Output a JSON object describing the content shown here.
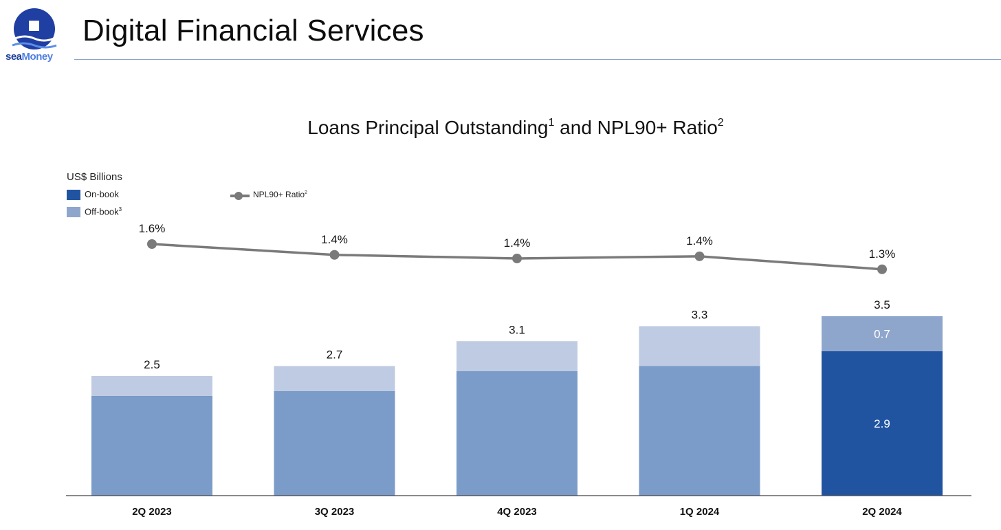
{
  "header": {
    "logo_sea": "sea",
    "logo_money": "Money",
    "title": "Digital Financial Services"
  },
  "chart_title": {
    "main_a": "Loans Principal Outstanding",
    "sup_a": "1",
    "main_b": " and NPL90+ Ratio",
    "sup_b": "2"
  },
  "unit_label": "US$ Billions",
  "legend": {
    "on_book": "On-book",
    "off_book": "Off-book",
    "off_book_sup": "3",
    "ratio": "NPL90+ Ratio",
    "ratio_sup": "2"
  },
  "colors": {
    "on_book_highlight": "#2054a1",
    "on_book": "#7b9bc8",
    "off_book_highlight": "#8fa6cc",
    "off_book": "#bfcbe2",
    "line": "#7a7a7a",
    "axis": "#444444"
  },
  "chart_data": {
    "type": "bar",
    "stacked": true,
    "title": "Loans Principal Outstanding and NPL90+ Ratio",
    "ylabel": "US$ Billions",
    "categories": [
      "2Q 2023",
      "3Q 2023",
      "4Q 2023",
      "1Q 2024",
      "2Q 2024"
    ],
    "series": [
      {
        "name": "On-book",
        "values": [
          2.0,
          2.1,
          2.5,
          2.6,
          2.9
        ]
      },
      {
        "name": "Off-book",
        "values": [
          0.4,
          0.5,
          0.6,
          0.8,
          0.7
        ]
      }
    ],
    "totals": [
      2.5,
      2.7,
      3.1,
      3.3,
      3.5
    ],
    "total_labels": [
      "2.5",
      "2.7",
      "3.1",
      "3.3",
      "3.5"
    ],
    "highlight_labels": {
      "on_book": "2.9",
      "off_book": "0.7"
    },
    "line_series": {
      "name": "NPL90+ Ratio",
      "values": [
        1.6,
        1.45,
        1.4,
        1.43,
        1.25
      ],
      "labels": [
        "1.6%",
        "1.4%",
        "1.4%",
        "1.4%",
        "1.3%"
      ]
    },
    "legend_position": "top-left",
    "grid": false
  }
}
